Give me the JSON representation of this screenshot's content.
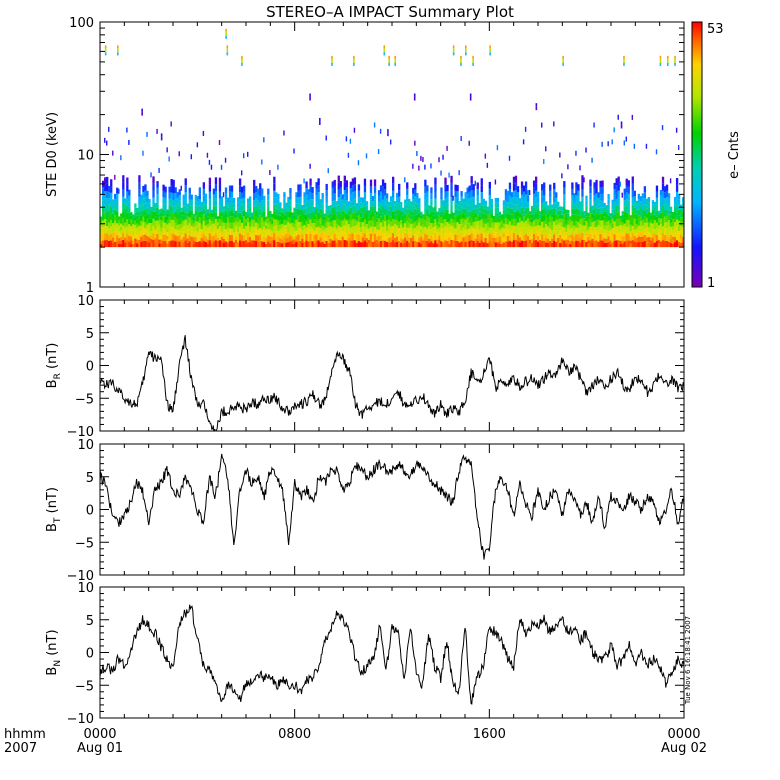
{
  "title": "STEREO–A IMPACT Summary Plot",
  "stamp": "Tue Nov  6 16:18:41 2007",
  "time_axis": {
    "corner_labels": [
      "hhmm",
      "2007"
    ],
    "ticks": [
      {
        "hour": 0,
        "label": "0000",
        "date": "Aug 01"
      },
      {
        "hour": 8,
        "label": "0800",
        "date": ""
      },
      {
        "hour": 16,
        "label": "1600",
        "date": ""
      },
      {
        "hour": 24,
        "label": "0000",
        "date": "Aug 02"
      }
    ]
  },
  "colors": {
    "trace": "#000000",
    "frame": "#000000"
  },
  "chart_data": [
    {
      "type": "heatmap",
      "name": "ste-d0",
      "ylabel": "STE D0 (keV)",
      "yscale": "log",
      "ylim": [
        1,
        100
      ],
      "yticks": [
        {
          "v": 1,
          "t": "1"
        },
        {
          "v": 10,
          "t": "10"
        },
        {
          "v": 100,
          "t": "100"
        }
      ],
      "xlim": [
        0,
        24
      ],
      "colorbar": {
        "label": "e– Cnts",
        "min": 1,
        "max": 53,
        "min_label": "1",
        "max_label": "53"
      },
      "band": {
        "energy_keV": [
          2,
          4
        ],
        "counts_at_2keV": 45,
        "counts_at_4keV": 5
      },
      "sparse_events": [
        {
          "t": 0.2,
          "e": 60
        },
        {
          "t": 0.7,
          "e": 60
        },
        {
          "t": 5.15,
          "e": 80
        },
        {
          "t": 5.2,
          "e": 60
        },
        {
          "t": 5.8,
          "e": 50
        },
        {
          "t": 9.5,
          "e": 50
        },
        {
          "t": 10.4,
          "e": 50
        },
        {
          "t": 11.65,
          "e": 60
        },
        {
          "t": 11.85,
          "e": 50
        },
        {
          "t": 12.1,
          "e": 50
        },
        {
          "t": 14.5,
          "e": 60
        },
        {
          "t": 14.8,
          "e": 50
        },
        {
          "t": 15.0,
          "e": 60
        },
        {
          "t": 15.3,
          "e": 50
        },
        {
          "t": 16.0,
          "e": 60
        },
        {
          "t": 19.0,
          "e": 50
        },
        {
          "t": 21.5,
          "e": 50
        },
        {
          "t": 23.0,
          "e": 50
        },
        {
          "t": 23.3,
          "e": 50
        },
        {
          "t": 23.6,
          "e": 50
        },
        {
          "t": 1.7,
          "e": 20
        },
        {
          "t": 2.5,
          "e": 13
        },
        {
          "t": 8.6,
          "e": 26
        },
        {
          "t": 9.0,
          "e": 17
        },
        {
          "t": 11.8,
          "e": 14
        },
        {
          "t": 12.9,
          "e": 26
        },
        {
          "t": 15.2,
          "e": 26
        },
        {
          "t": 17.9,
          "e": 22
        },
        {
          "t": 21.4,
          "e": 16
        }
      ]
    },
    {
      "type": "line",
      "name": "br",
      "ylabel_main": "B",
      "ylabel_sub": "R",
      "ylabel_unit": " (nT)",
      "ylim": [
        -10,
        10
      ],
      "yticks": [
        {
          "v": -10,
          "t": "−10"
        },
        {
          "v": -5,
          "t": "−5"
        },
        {
          "v": 0,
          "t": "0"
        },
        {
          "v": 5,
          "t": "5"
        },
        {
          "v": 10,
          "t": "10"
        }
      ],
      "xlim": [
        0,
        24
      ],
      "series": [
        {
          "x": [
            0,
            0.25,
            0.5,
            0.75,
            1.0,
            1.25,
            1.5,
            1.75,
            2.0,
            2.25,
            2.5,
            2.75,
            3.0,
            3.25,
            3.5,
            3.75,
            4.0,
            4.25,
            4.5,
            4.75,
            5.0,
            5.25,
            5.5,
            5.75,
            6.0,
            6.25,
            6.5,
            6.75,
            7.0,
            7.25,
            7.5,
            7.75,
            8.0,
            8.25,
            8.5,
            8.75,
            9.0,
            9.25,
            9.5,
            9.75,
            10.0,
            10.25,
            10.5,
            10.75,
            11.0,
            11.25,
            11.5,
            11.75,
            12.0,
            12.25,
            12.5,
            12.75,
            13.0,
            13.25,
            13.5,
            13.75,
            14.0,
            14.25,
            14.5,
            14.75,
            15.0,
            15.25,
            15.5,
            15.75,
            16.0,
            16.25,
            16.5,
            16.75,
            17.0,
            17.25,
            17.5,
            17.75,
            18.0,
            18.25,
            18.5,
            18.75,
            19.0,
            19.25,
            19.5,
            19.75,
            20.0,
            20.25,
            20.5,
            20.75,
            21.0,
            21.25,
            21.5,
            21.75,
            22.0,
            22.25,
            22.5,
            22.75,
            23.0,
            23.25,
            23.5,
            23.75,
            24.0
          ],
          "y": [
            -2,
            -3,
            -2.5,
            -4,
            -5,
            -5.5,
            -6,
            -3,
            2,
            1,
            1.5,
            -6,
            -7,
            0,
            4,
            -2,
            -6,
            -6,
            -8,
            -10.5,
            -7,
            -7,
            -6.5,
            -6,
            -7,
            -5.5,
            -6,
            -5,
            -5,
            -5,
            -6.5,
            -7,
            -6,
            -6,
            -5.5,
            -4.5,
            -6,
            -5.5,
            -1,
            1.5,
            1,
            -1,
            -6,
            -7.5,
            -6.5,
            -6,
            -5.5,
            -6,
            -5,
            -4,
            -6,
            -5.5,
            -5.5,
            -4.5,
            -6,
            -7.5,
            -6,
            -7.5,
            -6.5,
            -7,
            -5.5,
            -1,
            -3,
            -1.5,
            1.5,
            -3.5,
            -2,
            -3,
            -2,
            -3,
            -2.5,
            -2,
            -3,
            -2,
            -1,
            -1.5,
            1,
            -1,
            0,
            -2,
            -4,
            -3,
            -2,
            -3.5,
            -2,
            -1,
            -3,
            -3.5,
            -2,
            -2.5,
            -4,
            -3,
            -1.5,
            -3,
            -2,
            -3.5,
            -3
          ]
        }
      ]
    },
    {
      "type": "line",
      "name": "bt",
      "ylabel_main": "B",
      "ylabel_sub": "T",
      "ylabel_unit": " (nT)",
      "ylim": [
        -10,
        10
      ],
      "yticks": [
        {
          "v": -10,
          "t": "−10"
        },
        {
          "v": -5,
          "t": "−5"
        },
        {
          "v": 0,
          "t": "0"
        },
        {
          "v": 5,
          "t": "5"
        },
        {
          "v": 10,
          "t": "10"
        }
      ],
      "xlim": [
        0,
        24
      ],
      "series": [
        {
          "x": [
            0,
            0.25,
            0.5,
            0.75,
            1.0,
            1.25,
            1.5,
            1.75,
            2.0,
            2.25,
            2.5,
            2.75,
            3.0,
            3.25,
            3.5,
            3.75,
            4.0,
            4.25,
            4.5,
            4.75,
            5.0,
            5.25,
            5.5,
            5.75,
            6.0,
            6.25,
            6.5,
            6.75,
            7.0,
            7.25,
            7.5,
            7.75,
            8.0,
            8.25,
            8.5,
            8.75,
            9.0,
            9.25,
            9.5,
            9.75,
            10.0,
            10.25,
            10.5,
            10.75,
            11.0,
            11.25,
            11.5,
            11.75,
            12.0,
            12.25,
            12.5,
            12.75,
            13.0,
            13.25,
            13.5,
            13.75,
            14.0,
            14.25,
            14.5,
            14.75,
            15.0,
            15.25,
            15.5,
            15.75,
            16.0,
            16.25,
            16.5,
            16.75,
            17.0,
            17.25,
            17.5,
            17.75,
            18.0,
            18.25,
            18.5,
            18.75,
            19.0,
            19.25,
            19.5,
            19.75,
            20.0,
            20.25,
            20.5,
            20.75,
            21.0,
            21.25,
            21.5,
            21.75,
            22.0,
            22.25,
            22.5,
            22.75,
            23.0,
            23.25,
            23.5,
            23.75,
            24.0
          ],
          "y": [
            5,
            4,
            -1,
            -2,
            -1,
            1,
            4,
            3,
            -2,
            3,
            4,
            6,
            3,
            2,
            5,
            3,
            0,
            -2,
            5,
            2,
            8,
            5,
            -6,
            3,
            6,
            4,
            5,
            2,
            6,
            5,
            3,
            -5,
            4,
            2,
            3,
            1,
            5,
            4,
            6,
            6,
            3,
            4,
            7,
            6,
            5,
            6,
            7,
            6,
            6,
            7,
            6,
            5,
            7,
            6,
            5,
            4,
            3,
            2,
            1,
            6,
            8,
            7,
            -1,
            -7,
            -6,
            3,
            5,
            3,
            -1,
            4,
            1,
            -1,
            3,
            0,
            2,
            3,
            -1,
            3,
            2,
            -1,
            1,
            -2,
            2,
            -3,
            2,
            1,
            0,
            2,
            1,
            0,
            2,
            1,
            -2,
            0,
            3,
            -2,
            2
          ]
        }
      ]
    },
    {
      "type": "line",
      "name": "bn",
      "ylabel_main": "B",
      "ylabel_sub": "N",
      "ylabel_unit": " (nT)",
      "ylim": [
        -10,
        10
      ],
      "yticks": [
        {
          "v": -10,
          "t": "−10"
        },
        {
          "v": -5,
          "t": "−5"
        },
        {
          "v": 0,
          "t": "0"
        },
        {
          "v": 5,
          "t": "5"
        },
        {
          "v": 10,
          "t": "10"
        }
      ],
      "xlim": [
        0,
        24
      ],
      "series": [
        {
          "x": [
            0,
            0.25,
            0.5,
            0.75,
            1.0,
            1.25,
            1.5,
            1.75,
            2.0,
            2.25,
            2.5,
            2.75,
            3.0,
            3.25,
            3.5,
            3.75,
            4.0,
            4.25,
            4.5,
            4.75,
            5.0,
            5.25,
            5.5,
            5.75,
            6.0,
            6.25,
            6.5,
            6.75,
            7.0,
            7.25,
            7.5,
            7.75,
            8.0,
            8.25,
            8.5,
            8.75,
            9.0,
            9.25,
            9.5,
            9.75,
            10.0,
            10.25,
            10.5,
            10.75,
            11.0,
            11.25,
            11.5,
            11.75,
            12.0,
            12.25,
            12.5,
            12.75,
            13.0,
            13.25,
            13.5,
            13.75,
            14.0,
            14.25,
            14.5,
            14.75,
            15.0,
            15.25,
            15.5,
            15.75,
            16.0,
            16.25,
            16.5,
            16.75,
            17.0,
            17.25,
            17.5,
            17.75,
            18.0,
            18.25,
            18.5,
            18.75,
            19.0,
            19.25,
            19.5,
            19.75,
            20.0,
            20.25,
            20.5,
            20.75,
            21.0,
            21.25,
            21.5,
            21.75,
            22.0,
            22.25,
            22.5,
            22.75,
            23.0,
            23.25,
            23.5,
            23.75,
            24.0
          ],
          "y": [
            -3,
            -2,
            -3,
            -1,
            -2,
            0,
            3,
            5,
            4,
            3,
            1,
            -1,
            -2,
            4,
            6,
            7,
            2,
            -2,
            -3,
            -4,
            -8,
            -5,
            -6,
            -7,
            -5,
            -4,
            -3,
            -4,
            -4,
            -5,
            -4,
            -5,
            -5,
            -6,
            -4,
            -4,
            -2,
            2,
            4,
            6,
            5,
            3,
            -1,
            -3,
            -2,
            -1,
            4,
            -3,
            4,
            3,
            -4,
            4,
            -3,
            -5,
            3,
            -2,
            -4,
            2,
            -5,
            -6,
            4,
            -8,
            -4,
            -2,
            4,
            3,
            2,
            -1,
            -2,
            5,
            3,
            4,
            4,
            5,
            3,
            4,
            5,
            3,
            4,
            2,
            3,
            0,
            -1,
            -1,
            1,
            -2,
            -1,
            1,
            -2,
            0,
            -2,
            -1,
            -2,
            -5,
            -3,
            -1,
            -2
          ]
        }
      ]
    }
  ]
}
